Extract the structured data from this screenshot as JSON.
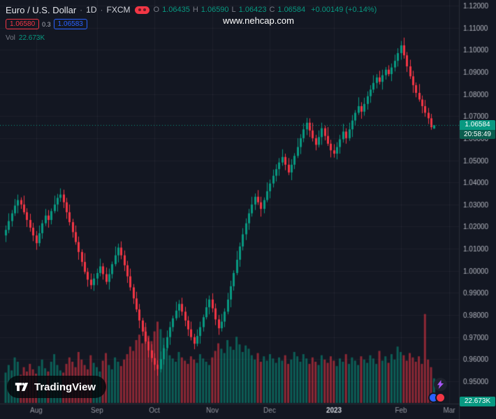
{
  "header": {
    "symbol": "Euro / U.S. Dollar",
    "sep": "·",
    "interval": "1D",
    "exchange": "FXCM",
    "ohlc": {
      "open_label": "O",
      "open": "1.06435",
      "high_label": "H",
      "high": "1.06590",
      "low_label": "L",
      "low": "1.06423",
      "close_label": "C",
      "close": "1.06584",
      "change": "+0.00149 (+0.14%)"
    },
    "sell_price": "1.06580",
    "spread": "0.3",
    "buy_price": "1.06583",
    "volume_label": "Vol",
    "volume_value": "22.673K"
  },
  "watermark": "www.nehcap.com",
  "logo_text": "TradingView",
  "price_line": {
    "value": 1.06584,
    "label": "1.06584",
    "countdown": "20:58:49"
  },
  "volume_badge": "22.673K",
  "price_scale": {
    "labels": [
      "1.12000",
      "1.11000",
      "1.10000",
      "1.09000",
      "1.08000",
      "1.07000",
      "1.06000",
      "1.05000",
      "1.04000",
      "1.03000",
      "1.02000",
      "1.01000",
      "1.00000",
      "0.99000",
      "0.98000",
      "0.97000",
      "0.96000",
      "0.95000"
    ],
    "top_price": 1.12,
    "bottom_price": 0.95,
    "top_y": 8,
    "bottom_y": 546
  },
  "time_scale": {
    "labels": [
      {
        "text": "Aug",
        "index": 10
      },
      {
        "text": "Sep",
        "index": 30
      },
      {
        "text": "Oct",
        "index": 49
      },
      {
        "text": "Nov",
        "index": 68
      },
      {
        "text": "Dec",
        "index": 87
      },
      {
        "text": "2023",
        "index": 108,
        "emphasis": true
      },
      {
        "text": "Feb",
        "index": 130
      },
      {
        "text": "Mar",
        "index": 146
      }
    ]
  },
  "colors": {
    "background": "#131722",
    "up": "#089981",
    "down": "#f23645",
    "grid": "rgba(134,137,147,0.09)",
    "axis_text": "#b2b5be",
    "time_text": "#9598a1",
    "time_text_emphasis": "#d1d4dc",
    "separator": "#2a2e39",
    "volume_up": "rgba(8,153,129,0.55)",
    "volume_down": "rgba(242,54,69,0.55)"
  },
  "chart_data": {
    "type": "candlestick",
    "symbol": "EURUSD",
    "title": "Euro / U.S. Dollar · 1D · FXCM",
    "interval": "1D",
    "x_range": "Aug 2022 - Feb 2023",
    "y_range": [
      0.95,
      1.12
    ],
    "legend_position": "top-left",
    "grid": true,
    "columns": [
      "open",
      "high",
      "low",
      "close",
      "volume_k"
    ],
    "candles": [
      [
        1.016,
        1.0205,
        1.013,
        1.0185,
        28
      ],
      [
        1.0185,
        1.026,
        1.017,
        1.0225,
        35
      ],
      [
        1.0225,
        1.0275,
        1.02,
        1.026,
        30
      ],
      [
        1.026,
        1.0325,
        1.0248,
        1.0295,
        42
      ],
      [
        1.0295,
        1.0345,
        1.026,
        1.032,
        38
      ],
      [
        1.032,
        1.0332,
        1.028,
        1.03,
        26
      ],
      [
        1.03,
        1.034,
        1.0255,
        1.0265,
        33
      ],
      [
        1.0265,
        1.0283,
        1.0198,
        1.023,
        29
      ],
      [
        1.023,
        1.0258,
        1.0177,
        1.0195,
        36
      ],
      [
        1.0195,
        1.0217,
        1.0134,
        1.016,
        31
      ],
      [
        1.016,
        1.018,
        1.0095,
        1.0125,
        27
      ],
      [
        1.0125,
        1.0205,
        1.011,
        1.017,
        34
      ],
      [
        1.017,
        1.023,
        1.0145,
        1.0215,
        40
      ],
      [
        1.0215,
        1.028,
        1.0203,
        1.025,
        32
      ],
      [
        1.025,
        1.0275,
        1.0195,
        1.023,
        29
      ],
      [
        1.023,
        1.0282,
        1.021,
        1.027,
        38
      ],
      [
        1.027,
        1.034,
        1.026,
        1.03,
        45
      ],
      [
        1.03,
        1.0348,
        1.0268,
        1.033,
        35
      ],
      [
        1.033,
        1.0373,
        1.0312,
        1.0345,
        30
      ],
      [
        1.0345,
        1.0367,
        1.0284,
        1.031,
        28
      ],
      [
        1.031,
        1.033,
        1.0235,
        1.0265,
        36
      ],
      [
        1.0265,
        1.03,
        1.0205,
        1.022,
        42
      ],
      [
        1.022,
        1.0235,
        1.015,
        1.0175,
        38
      ],
      [
        1.0175,
        1.0205,
        1.0118,
        1.013,
        33
      ],
      [
        1.013,
        1.0155,
        1.005,
        1.0085,
        47
      ],
      [
        1.0085,
        1.0097,
        1.002,
        1.004,
        40
      ],
      [
        1.004,
        1.008,
        0.9985,
        0.9995,
        35
      ],
      [
        0.9995,
        1.0013,
        0.9928,
        0.996,
        31
      ],
      [
        0.996,
        0.9988,
        0.9917,
        0.9935,
        44
      ],
      [
        0.9935,
        0.9987,
        0.9909,
        0.9965,
        37
      ],
      [
        0.9965,
        1.001,
        0.9935,
        0.999,
        33
      ],
      [
        0.999,
        1.0055,
        0.9975,
        1.002,
        29
      ],
      [
        1.002,
        1.0035,
        0.996,
        0.9985,
        39
      ],
      [
        0.9985,
        1.0015,
        0.9938,
        0.995,
        46
      ],
      [
        0.995,
        1.001,
        0.9915,
        0.9985,
        35
      ],
      [
        0.9985,
        1.0042,
        0.9965,
        1.003,
        31
      ],
      [
        1.003,
        1.011,
        1.002,
        1.007,
        42
      ],
      [
        1.007,
        1.0123,
        1.0038,
        1.0105,
        38
      ],
      [
        1.0105,
        1.0133,
        1.0052,
        1.007,
        34
      ],
      [
        1.007,
        1.0092,
        0.9999,
        1.0025,
        40
      ],
      [
        1.0025,
        1.0045,
        0.9945,
        0.9975,
        45
      ],
      [
        0.9975,
        1.001,
        0.991,
        0.9925,
        52
      ],
      [
        0.9925,
        0.994,
        0.985,
        0.9875,
        48
      ],
      [
        0.9875,
        0.9905,
        0.9813,
        0.9825,
        58
      ],
      [
        0.9825,
        0.985,
        0.974,
        0.9775,
        63
      ],
      [
        0.9775,
        0.9787,
        0.9705,
        0.9725,
        55
      ],
      [
        0.9725,
        0.9765,
        0.967,
        0.968,
        70
      ],
      [
        0.968,
        0.9698,
        0.9608,
        0.964,
        62
      ],
      [
        0.964,
        0.9668,
        0.9587,
        0.9605,
        57
      ],
      [
        0.9605,
        0.9627,
        0.9549,
        0.9575,
        66
      ],
      [
        0.9575,
        0.9595,
        0.9525,
        0.9555,
        75
      ],
      [
        0.9555,
        0.9635,
        0.954,
        0.96,
        68
      ],
      [
        0.96,
        0.9665,
        0.9575,
        0.965,
        60
      ],
      [
        0.965,
        0.973,
        0.9638,
        0.97,
        50
      ],
      [
        0.97,
        0.977,
        0.9665,
        0.9745,
        44
      ],
      [
        0.9745,
        0.9797,
        0.9725,
        0.9785,
        41
      ],
      [
        0.9785,
        0.986,
        0.9775,
        0.982,
        38
      ],
      [
        0.982,
        0.9868,
        0.9788,
        0.985,
        47
      ],
      [
        0.985,
        0.9878,
        0.9797,
        0.9815,
        42
      ],
      [
        0.9815,
        0.9837,
        0.9749,
        0.9775,
        39
      ],
      [
        0.9775,
        0.9795,
        0.9705,
        0.9735,
        36
      ],
      [
        0.9735,
        0.977,
        0.9685,
        0.97,
        43
      ],
      [
        0.97,
        0.9715,
        0.9645,
        0.967,
        40
      ],
      [
        0.967,
        0.9735,
        0.9658,
        0.9705,
        37
      ],
      [
        0.9705,
        0.977,
        0.967,
        0.9745,
        45
      ],
      [
        0.9745,
        0.9802,
        0.9725,
        0.979,
        41
      ],
      [
        0.979,
        0.9875,
        0.978,
        0.9835,
        38
      ],
      [
        0.9835,
        0.9888,
        0.9803,
        0.987,
        35
      ],
      [
        0.987,
        0.9898,
        0.9812,
        0.983,
        42
      ],
      [
        0.983,
        0.9852,
        0.9754,
        0.978,
        48
      ],
      [
        0.978,
        0.98,
        0.971,
        0.974,
        55
      ],
      [
        0.974,
        0.9805,
        0.9725,
        0.977,
        50
      ],
      [
        0.977,
        0.983,
        0.9745,
        0.9815,
        46
      ],
      [
        0.9815,
        0.99,
        0.9803,
        0.987,
        58
      ],
      [
        0.987,
        0.9955,
        0.9835,
        0.993,
        52
      ],
      [
        0.993,
        1.0002,
        0.991,
        0.999,
        49
      ],
      [
        0.999,
        1.009,
        0.998,
        1.005,
        61
      ],
      [
        1.005,
        1.0128,
        1.0018,
        1.011,
        54
      ],
      [
        1.011,
        1.0193,
        1.0092,
        1.0165,
        47
      ],
      [
        1.0165,
        1.0237,
        1.0139,
        1.0215,
        53
      ],
      [
        1.0215,
        1.028,
        1.0185,
        1.026,
        50
      ],
      [
        1.026,
        1.0335,
        1.0245,
        1.03,
        44
      ],
      [
        1.03,
        1.035,
        1.0275,
        1.0335,
        40
      ],
      [
        1.0335,
        1.0365,
        1.0298,
        1.031,
        46
      ],
      [
        1.031,
        1.0335,
        1.0245,
        1.028,
        38
      ],
      [
        1.028,
        1.0332,
        1.026,
        1.032,
        43
      ],
      [
        1.032,
        1.04,
        1.031,
        1.036,
        39
      ],
      [
        1.036,
        1.0413,
        1.0328,
        1.0395,
        45
      ],
      [
        1.0395,
        1.0458,
        1.0377,
        1.043,
        41
      ],
      [
        1.043,
        1.0482,
        1.0404,
        1.046,
        37
      ],
      [
        1.046,
        1.051,
        1.043,
        1.049,
        42
      ],
      [
        1.049,
        1.055,
        1.0475,
        1.0515,
        39
      ],
      [
        1.0515,
        1.053,
        1.0455,
        1.048,
        44
      ],
      [
        1.048,
        1.051,
        1.0433,
        1.0445,
        36
      ],
      [
        1.0445,
        1.0505,
        1.041,
        1.048,
        40
      ],
      [
        1.048,
        1.0532,
        1.046,
        1.052,
        47
      ],
      [
        1.052,
        1.06,
        1.051,
        1.056,
        43
      ],
      [
        1.056,
        1.0618,
        1.0528,
        1.06,
        38
      ],
      [
        1.06,
        1.0668,
        1.0582,
        1.064,
        45
      ],
      [
        1.064,
        1.0692,
        1.0614,
        1.067,
        41
      ],
      [
        1.067,
        1.069,
        1.0605,
        1.0635,
        36
      ],
      [
        1.0635,
        1.067,
        1.0585,
        1.06,
        42
      ],
      [
        1.06,
        1.0615,
        1.0545,
        1.057,
        38
      ],
      [
        1.057,
        1.0635,
        1.0558,
        1.0605,
        35
      ],
      [
        1.0605,
        1.067,
        1.057,
        1.0645,
        44
      ],
      [
        1.0645,
        1.0657,
        1.059,
        1.061,
        40
      ],
      [
        1.061,
        1.065,
        1.0565,
        1.0575,
        37
      ],
      [
        1.0575,
        1.0593,
        1.0513,
        1.0545,
        43
      ],
      [
        1.0545,
        1.0573,
        1.0512,
        1.053,
        39
      ],
      [
        1.053,
        1.0582,
        1.0504,
        1.056,
        34
      ],
      [
        1.056,
        1.0615,
        1.053,
        1.0595,
        41
      ],
      [
        1.0595,
        1.0665,
        1.058,
        1.063,
        38
      ],
      [
        1.063,
        1.0645,
        1.0575,
        1.06,
        45
      ],
      [
        1.06,
        1.067,
        1.0588,
        1.064,
        36
      ],
      [
        1.064,
        1.0705,
        1.0605,
        1.068,
        42
      ],
      [
        1.068,
        1.0727,
        1.066,
        1.0715,
        39
      ],
      [
        1.0715,
        1.0785,
        1.0705,
        1.0745,
        35
      ],
      [
        1.0745,
        1.0763,
        1.0688,
        1.072,
        43
      ],
      [
        1.072,
        1.0783,
        1.0702,
        1.0755,
        40
      ],
      [
        1.0755,
        1.0812,
        1.0729,
        1.079,
        37
      ],
      [
        1.079,
        1.084,
        1.076,
        1.082,
        44
      ],
      [
        1.082,
        1.0885,
        1.0805,
        1.085,
        41
      ],
      [
        1.085,
        1.089,
        1.0825,
        1.0875,
        36
      ],
      [
        1.0875,
        1.0905,
        1.0843,
        1.0855,
        48
      ],
      [
        1.0855,
        1.091,
        1.082,
        1.0885,
        39
      ],
      [
        1.0885,
        1.0922,
        1.0865,
        1.091,
        43
      ],
      [
        1.091,
        1.093,
        1.088,
        1.089,
        37
      ],
      [
        1.089,
        1.0938,
        1.0858,
        1.092,
        45
      ],
      [
        1.092,
        1.0978,
        1.0902,
        1.095,
        40
      ],
      [
        1.095,
        1.1007,
        1.0924,
        1.0985,
        52
      ],
      [
        1.0985,
        1.104,
        1.0955,
        1.102,
        47
      ],
      [
        1.102,
        1.1055,
        1.096,
        1.0975,
        44
      ],
      [
        1.0975,
        1.099,
        1.09,
        1.0925,
        39
      ],
      [
        1.0925,
        1.0955,
        1.0868,
        1.088,
        46
      ],
      [
        1.088,
        1.0905,
        1.0805,
        1.084,
        42
      ],
      [
        1.084,
        1.0852,
        1.0785,
        1.0805,
        38
      ],
      [
        1.0805,
        1.0845,
        1.0765,
        1.0775,
        43
      ],
      [
        1.0775,
        1.0793,
        1.0713,
        1.0745,
        36
      ],
      [
        1.0745,
        1.0773,
        1.0697,
        1.0715,
        82
      ],
      [
        1.0715,
        1.0737,
        1.0664,
        1.069,
        40
      ],
      [
        1.069,
        1.071,
        1.0638,
        1.065,
        33
      ],
      [
        1.06435,
        1.0659,
        1.06423,
        1.06584,
        22.673
      ]
    ]
  }
}
